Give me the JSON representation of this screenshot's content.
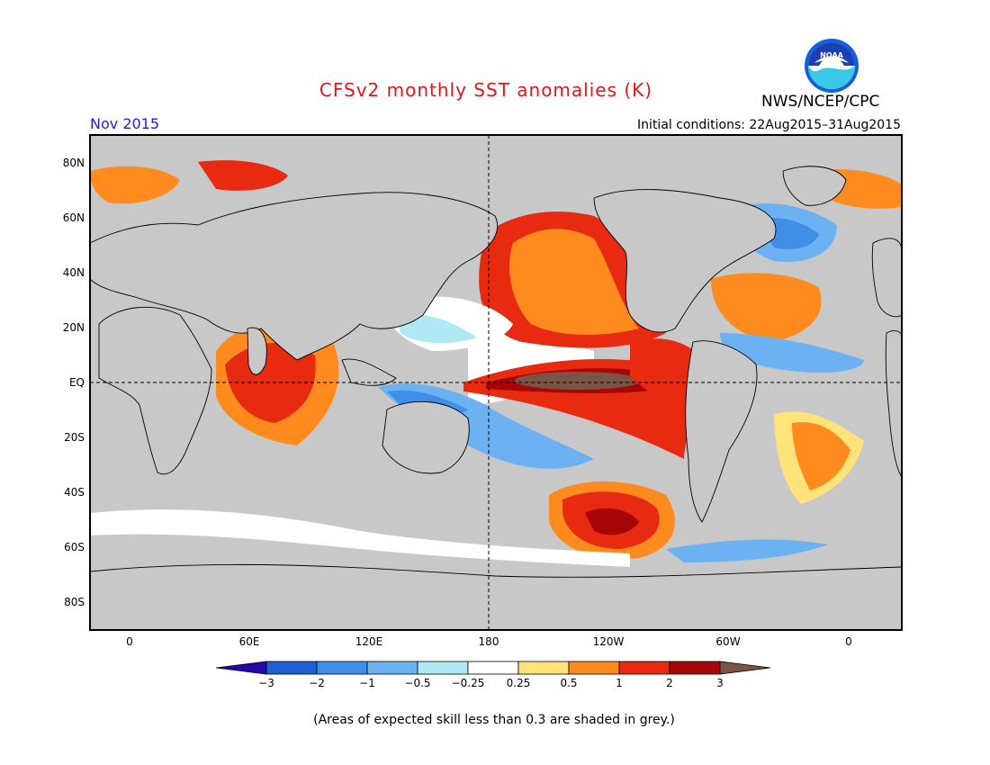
{
  "title": "CFSv2 monthly SST anomalies (K)",
  "agency": "NWS/NCEP/CPC",
  "logo_text": "NOAA",
  "month": "Nov 2015",
  "initial_conditions": "Initial conditions: 22Aug2015–31Aug2015",
  "note": "(Areas of expected skill less than 0.3 are shaded in grey.)",
  "colors": {
    "title": "#e8141a",
    "month": "#1a1aff",
    "land_mask": "#c8c8c8",
    "coast": "#000000"
  },
  "map": {
    "lat_labels": [
      "80N",
      "60N",
      "40N",
      "20N",
      "EQ",
      "20S",
      "40S",
      "60S",
      "80S"
    ],
    "lon_labels": [
      "0",
      "60E",
      "120E",
      "180",
      "120W",
      "60W",
      "0"
    ]
  },
  "colorbar": {
    "labels": [
      "−3",
      "−2",
      "−1",
      "−0.5",
      "−0.25",
      "0.25",
      "0.5",
      "1",
      "2",
      "3"
    ],
    "colors": [
      "#2a06a8",
      "#1e5fd6",
      "#3f8ee8",
      "#6cb2f2",
      "#b0e8f4",
      "#ffffff",
      "#ffe27a",
      "#ff8a1e",
      "#e82a10",
      "#a80606",
      "#7a5546"
    ]
  }
}
